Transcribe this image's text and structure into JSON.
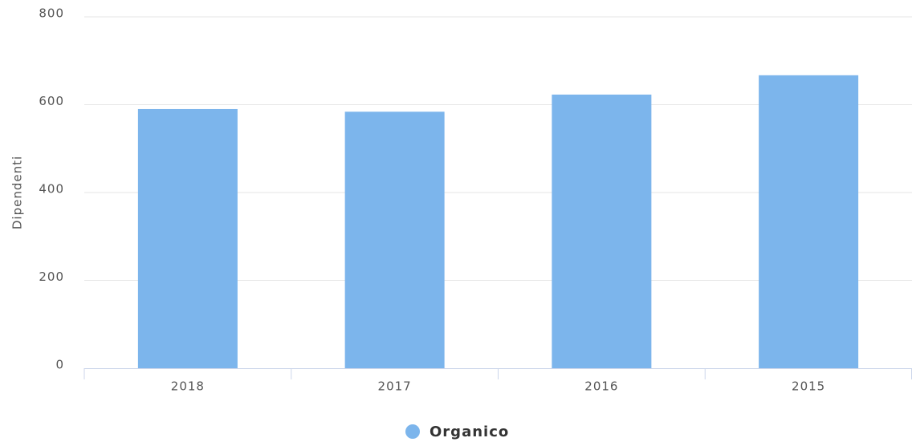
{
  "chart_data": {
    "type": "bar",
    "y_label": "Dipendenti",
    "categories": [
      "2018",
      "2017",
      "2016",
      "2015"
    ],
    "series": [
      {
        "name": "Organico",
        "color": "#7cb5ec",
        "values": [
          590,
          584,
          623,
          667
        ]
      }
    ],
    "ylim": [
      0,
      800
    ],
    "yticks": [
      0,
      200,
      400,
      600,
      800
    ],
    "grid": true,
    "legend": "bottom"
  }
}
